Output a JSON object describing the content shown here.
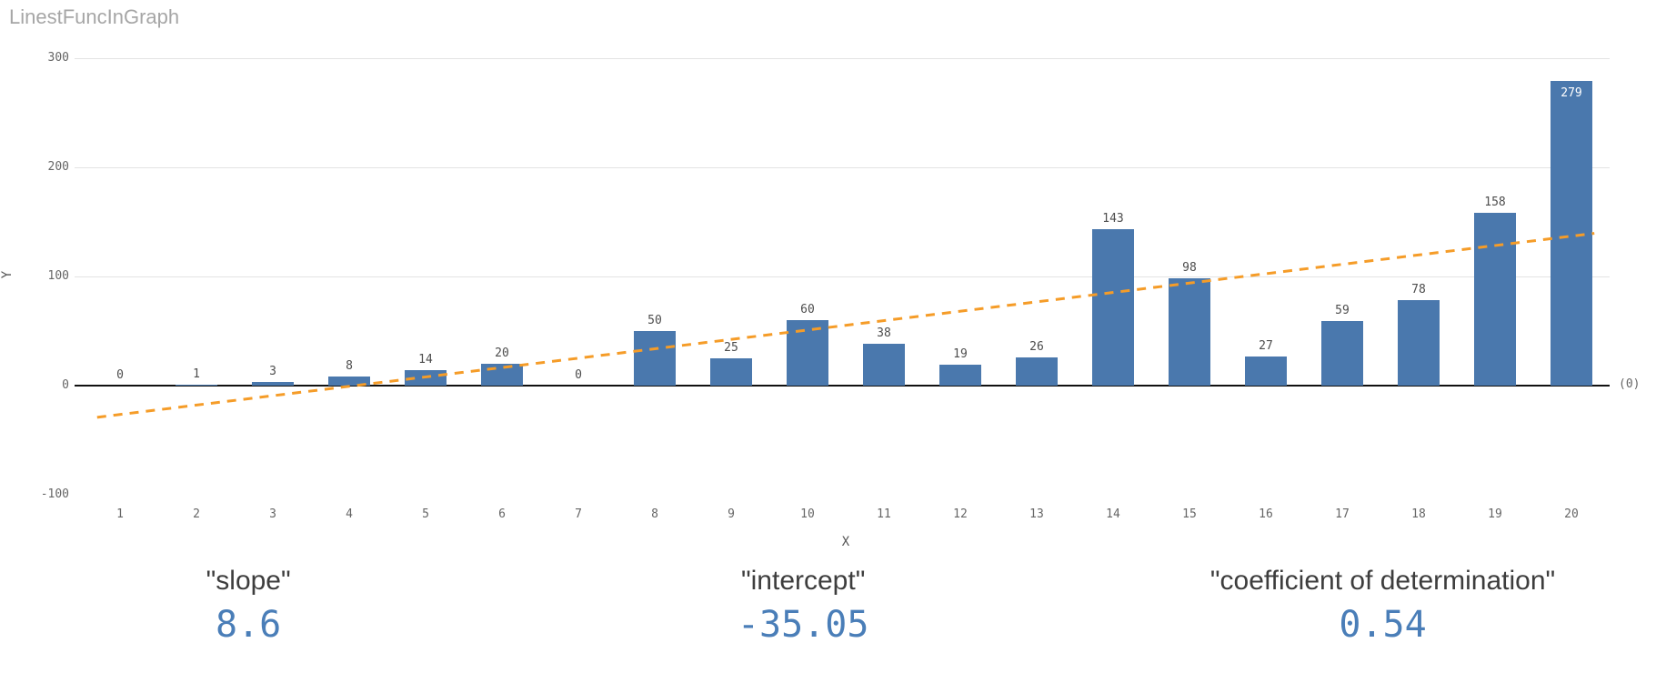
{
  "title": "LinestFuncInGraph",
  "chart_data": {
    "type": "bar",
    "x": [
      1,
      2,
      3,
      4,
      5,
      6,
      7,
      8,
      9,
      10,
      11,
      12,
      13,
      14,
      15,
      16,
      17,
      18,
      19,
      20
    ],
    "values": [
      0,
      1,
      3,
      8,
      14,
      20,
      0,
      50,
      25,
      60,
      38,
      19,
      26,
      143,
      98,
      27,
      59,
      78,
      158,
      279
    ],
    "title": "LinestFuncInGraph",
    "xlabel": "X",
    "ylabel": "Y",
    "ylim": [
      -100,
      300
    ],
    "yticks": [
      300,
      200,
      100,
      0,
      -100
    ],
    "right_axis_label": "(0)",
    "grid": true,
    "legend": "none",
    "bar_color": "#4a78ad",
    "trend_line": {
      "type": "linear",
      "slope": 8.6,
      "intercept": -35.05,
      "color": "#f59c28",
      "style": "dashed"
    }
  },
  "kpis": [
    {
      "label": "\"slope\"",
      "value": "8.6"
    },
    {
      "label": "\"intercept\"",
      "value": "-35.05"
    },
    {
      "label": "\"coefficient of determination\"",
      "value": "0.54"
    }
  ],
  "colors": {
    "bar": "#4a78ad",
    "trend": "#f59c28",
    "kpi_value": "#4a7eb8",
    "title_gray": "#a6a6a6"
  }
}
